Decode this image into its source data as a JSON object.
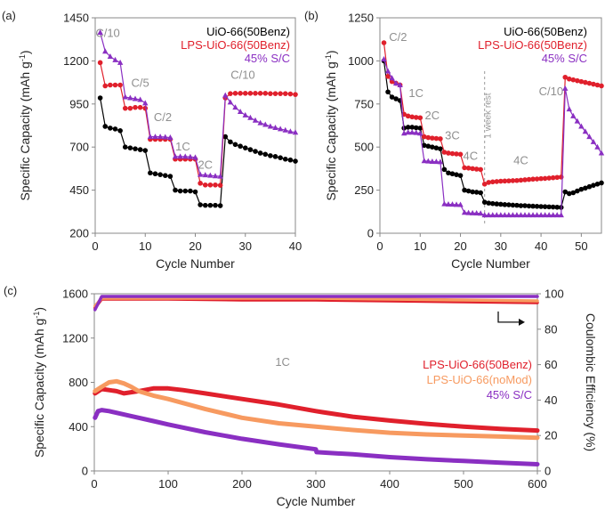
{
  "chart_data": [
    {
      "panel_label": "(a)",
      "type": "line",
      "xlabel": "Cycle Number",
      "ylabel": "Specific Capacity (mAh g",
      "ylabel_sup": "-1",
      "ylabel_close": ")",
      "xlim": [
        0,
        40
      ],
      "ylim": [
        200,
        1450
      ],
      "xticks": [
        0,
        10,
        20,
        30,
        40
      ],
      "yticks": [
        200,
        450,
        700,
        950,
        1200,
        1450
      ],
      "legend": {
        "placement": "top-right"
      },
      "annotations": [
        {
          "text": "C/10",
          "x": 2.5,
          "y": 1340
        },
        {
          "text": "C/5",
          "x": 9,
          "y": 1050
        },
        {
          "text": "C/2",
          "x": 13.5,
          "y": 850
        },
        {
          "text": "1C",
          "x": 17.5,
          "y": 680
        },
        {
          "text": "2C",
          "x": 22,
          "y": 575
        },
        {
          "text": "C/10",
          "x": 29.5,
          "y": 1095
        }
      ],
      "series": [
        {
          "name": "UiO-66(50Benz)",
          "color": "#000000",
          "marker": "circle",
          "x": [
            1,
            2,
            3,
            4,
            5,
            6,
            7,
            8,
            9,
            10,
            11,
            12,
            13,
            14,
            15,
            16,
            17,
            18,
            19,
            20,
            21,
            22,
            23,
            24,
            25,
            26,
            27,
            28,
            29,
            30,
            31,
            32,
            33,
            34,
            35,
            36,
            37,
            38,
            39,
            40
          ],
          "y": [
            985,
            820,
            810,
            805,
            795,
            700,
            695,
            690,
            685,
            680,
            550,
            545,
            540,
            535,
            530,
            450,
            445,
            445,
            445,
            440,
            365,
            362,
            362,
            362,
            360,
            760,
            730,
            715,
            705,
            695,
            685,
            675,
            665,
            658,
            650,
            645,
            638,
            630,
            625,
            618
          ]
        },
        {
          "name": "LPS-UiO-66(50Benz)",
          "color": "#e0202c",
          "marker": "circle",
          "x": [
            1,
            2,
            3,
            4,
            5,
            6,
            7,
            8,
            9,
            10,
            11,
            12,
            13,
            14,
            15,
            16,
            17,
            18,
            19,
            20,
            21,
            22,
            23,
            24,
            25,
            26,
            27,
            28,
            29,
            30,
            31,
            32,
            33,
            34,
            35,
            36,
            37,
            38,
            39,
            40
          ],
          "y": [
            1190,
            1055,
            1060,
            1060,
            1060,
            925,
            925,
            930,
            930,
            925,
            745,
            745,
            745,
            745,
            745,
            630,
            630,
            630,
            630,
            630,
            490,
            480,
            480,
            480,
            478,
            985,
            1010,
            1012,
            1012,
            1012,
            1012,
            1012,
            1012,
            1012,
            1010,
            1010,
            1010,
            1010,
            1008,
            1005
          ]
        },
        {
          "name": "45% S/C",
          "color": "#8a2fc2",
          "marker": "triangle",
          "x": [
            1,
            2,
            3,
            4,
            5,
            6,
            7,
            8,
            9,
            10,
            11,
            12,
            13,
            14,
            15,
            16,
            17,
            18,
            19,
            20,
            21,
            22,
            23,
            24,
            25,
            26,
            27,
            28,
            29,
            30,
            31,
            32,
            33,
            34,
            35,
            36,
            37,
            38,
            39,
            40
          ],
          "y": [
            1365,
            1255,
            1225,
            1205,
            1190,
            990,
            985,
            980,
            975,
            955,
            760,
            760,
            760,
            758,
            755,
            645,
            645,
            645,
            643,
            640,
            540,
            538,
            535,
            532,
            530,
            1000,
            960,
            930,
            905,
            885,
            870,
            855,
            840,
            830,
            820,
            812,
            805,
            798,
            790,
            785
          ]
        }
      ]
    },
    {
      "panel_label": "(b)",
      "type": "line",
      "xlabel": "Cycle Number",
      "ylabel": "Specific Capacity (mAh g",
      "ylabel_sup": "-1",
      "ylabel_close": ")",
      "xlim": [
        0,
        55
      ],
      "ylim": [
        0,
        1250
      ],
      "xticks": [
        0,
        10,
        20,
        30,
        40,
        50
      ],
      "yticks": [
        0,
        250,
        500,
        750,
        1000,
        1250
      ],
      "legend": {
        "placement": "top-right"
      },
      "rest_line": {
        "x": 26,
        "label": "1 week rest"
      },
      "annotations": [
        {
          "text": "C/2",
          "x": 4.5,
          "y": 1115
        },
        {
          "text": "1C",
          "x": 9,
          "y": 790
        },
        {
          "text": "2C",
          "x": 13,
          "y": 660
        },
        {
          "text": "3C",
          "x": 18,
          "y": 545
        },
        {
          "text": "4C",
          "x": 22.5,
          "y": 425
        },
        {
          "text": "4C",
          "x": 35,
          "y": 400
        },
        {
          "text": "C/10",
          "x": 42.5,
          "y": 800
        }
      ],
      "series": [
        {
          "name": "UiO-66(50Benz)",
          "color": "#000000",
          "marker": "circle",
          "x": [
            1,
            2,
            3,
            4,
            5,
            6,
            7,
            8,
            9,
            10,
            11,
            12,
            13,
            14,
            15,
            16,
            17,
            18,
            19,
            20,
            21,
            22,
            23,
            24,
            25,
            26,
            27,
            28,
            29,
            30,
            31,
            32,
            33,
            34,
            35,
            36,
            37,
            38,
            39,
            40,
            41,
            42,
            43,
            44,
            45,
            46,
            47,
            48,
            49,
            50,
            51,
            52,
            53,
            54,
            55
          ],
          "y": [
            1000,
            820,
            790,
            780,
            770,
            610,
            615,
            615,
            612,
            610,
            510,
            505,
            500,
            495,
            490,
            370,
            350,
            345,
            340,
            335,
            250,
            245,
            240,
            238,
            235,
            180,
            175,
            172,
            170,
            168,
            166,
            165,
            163,
            162,
            160,
            160,
            158,
            157,
            156,
            155,
            154,
            153,
            152,
            151,
            150,
            240,
            230,
            235,
            245,
            255,
            262,
            270,
            278,
            285,
            292
          ]
        },
        {
          "name": "LPS-UiO-66(50Benz)",
          "color": "#e0202c",
          "marker": "circle",
          "x": [
            1,
            2,
            3,
            4,
            5,
            6,
            7,
            8,
            9,
            10,
            11,
            12,
            13,
            14,
            15,
            16,
            17,
            18,
            19,
            20,
            21,
            22,
            23,
            24,
            25,
            26,
            27,
            28,
            29,
            30,
            31,
            32,
            33,
            34,
            35,
            36,
            37,
            38,
            39,
            40,
            41,
            42,
            43,
            44,
            45,
            46,
            47,
            48,
            49,
            50,
            51,
            52,
            53,
            54,
            55
          ],
          "y": [
            1105,
            910,
            880,
            870,
            860,
            690,
            680,
            675,
            672,
            670,
            560,
            555,
            552,
            550,
            548,
            470,
            465,
            462,
            460,
            458,
            380,
            378,
            375,
            372,
            370,
            285,
            295,
            298,
            300,
            302,
            303,
            304,
            305,
            306,
            308,
            310,
            312,
            314,
            315,
            317,
            318,
            320,
            322,
            324,
            326,
            905,
            895,
            890,
            885,
            880,
            875,
            870,
            865,
            860,
            855
          ]
        },
        {
          "name": "45% S/C",
          "color": "#8a2fc2",
          "marker": "triangle",
          "x": [
            1,
            2,
            3,
            4,
            5,
            6,
            7,
            8,
            9,
            10,
            11,
            12,
            13,
            14,
            15,
            16,
            17,
            18,
            19,
            20,
            21,
            22,
            23,
            24,
            25,
            26,
            27,
            28,
            29,
            30,
            31,
            32,
            33,
            34,
            35,
            36,
            37,
            38,
            39,
            40,
            41,
            42,
            43,
            44,
            45,
            46,
            47,
            48,
            49,
            50,
            51,
            52,
            53,
            54,
            55
          ],
          "y": [
            1010,
            940,
            900,
            870,
            860,
            580,
            585,
            585,
            583,
            580,
            420,
            418,
            416,
            415,
            414,
            170,
            168,
            167,
            166,
            165,
            120,
            118,
            117,
            116,
            115,
            105,
            105,
            105,
            105,
            105,
            105,
            105,
            105,
            105,
            105,
            105,
            105,
            105,
            105,
            105,
            105,
            105,
            105,
            105,
            105,
            840,
            720,
            680,
            650,
            620,
            590,
            560,
            530,
            500,
            465
          ]
        }
      ]
    },
    {
      "panel_label": "(c)",
      "type": "line",
      "xlabel": "Cycle Number",
      "ylabel": "Specific Capacity (mAh g",
      "ylabel_sup": "-1",
      "ylabel_close": ")",
      "y2label": "Coulombic Efficiency (%)",
      "xlim": [
        0,
        600
      ],
      "ylim": [
        0,
        1600
      ],
      "y2lim": [
        0,
        100
      ],
      "xticks": [
        0,
        100,
        200,
        300,
        400,
        500,
        600
      ],
      "yticks": [
        0,
        400,
        800,
        1200,
        1600
      ],
      "y2ticks": [
        0,
        20,
        40,
        60,
        80,
        100
      ],
      "legend": {
        "placement": "right"
      },
      "annotations": [
        {
          "text": "1C",
          "x": 255,
          "y": 950
        }
      ],
      "series": [
        {
          "name": "LPS-UiO-66(50Benz)",
          "color": "#e0202c",
          "axis": "left",
          "x": [
            1,
            10,
            20,
            30,
            40,
            60,
            80,
            100,
            120,
            150,
            200,
            250,
            300,
            310,
            350,
            400,
            450,
            500,
            550,
            600
          ],
          "y": [
            700,
            740,
            730,
            720,
            700,
            720,
            745,
            745,
            730,
            700,
            650,
            600,
            540,
            530,
            490,
            455,
            425,
            400,
            380,
            365
          ]
        },
        {
          "name": "LPS-UiO-66(noMod)",
          "color": "#f79a60",
          "axis": "left",
          "x": [
            1,
            10,
            20,
            30,
            40,
            50,
            60,
            80,
            100,
            150,
            200,
            250,
            300,
            350,
            400,
            450,
            500,
            550,
            600
          ],
          "y": [
            720,
            760,
            800,
            810,
            790,
            760,
            720,
            680,
            650,
            560,
            480,
            430,
            400,
            370,
            345,
            330,
            320,
            310,
            300
          ]
        },
        {
          "name": "45% S/C",
          "color": "#8a2fc2",
          "axis": "left",
          "x": [
            1,
            5,
            10,
            20,
            30,
            50,
            80,
            100,
            150,
            200,
            250,
            300,
            301,
            350,
            400,
            450,
            500,
            550,
            600
          ],
          "y": [
            480,
            540,
            550,
            540,
            525,
            495,
            450,
            420,
            350,
            290,
            240,
            195,
            170,
            150,
            125,
            105,
            90,
            75,
            60
          ]
        },
        {
          "name": "Coulombic Efficiency (LPS-UiO-66(50Benz))",
          "color": "#e0202c",
          "axis": "right",
          "x": [
            1,
            10,
            50,
            100,
            200,
            300,
            400,
            500,
            600
          ],
          "y": [
            92,
            97,
            97,
            97,
            96.5,
            96.5,
            96,
            95.5,
            95
          ]
        },
        {
          "name": "Coulombic Efficiency (LPS-UiO-66(noMod))",
          "color": "#f79a60",
          "axis": "right",
          "x": [
            1,
            10,
            50,
            100,
            200,
            300,
            400,
            500,
            600
          ],
          "y": [
            93,
            97.5,
            97.5,
            97.5,
            97.5,
            97.5,
            97,
            96.5,
            96
          ]
        },
        {
          "name": "Coulombic Efficiency (45% S/C)",
          "color": "#8a2fc2",
          "axis": "right",
          "x": [
            1,
            10,
            50,
            100,
            200,
            300,
            400,
            500,
            600
          ],
          "y": [
            91,
            98.5,
            98.5,
            98.5,
            98.5,
            98.5,
            98.5,
            98.5,
            98.5
          ]
        }
      ]
    }
  ]
}
